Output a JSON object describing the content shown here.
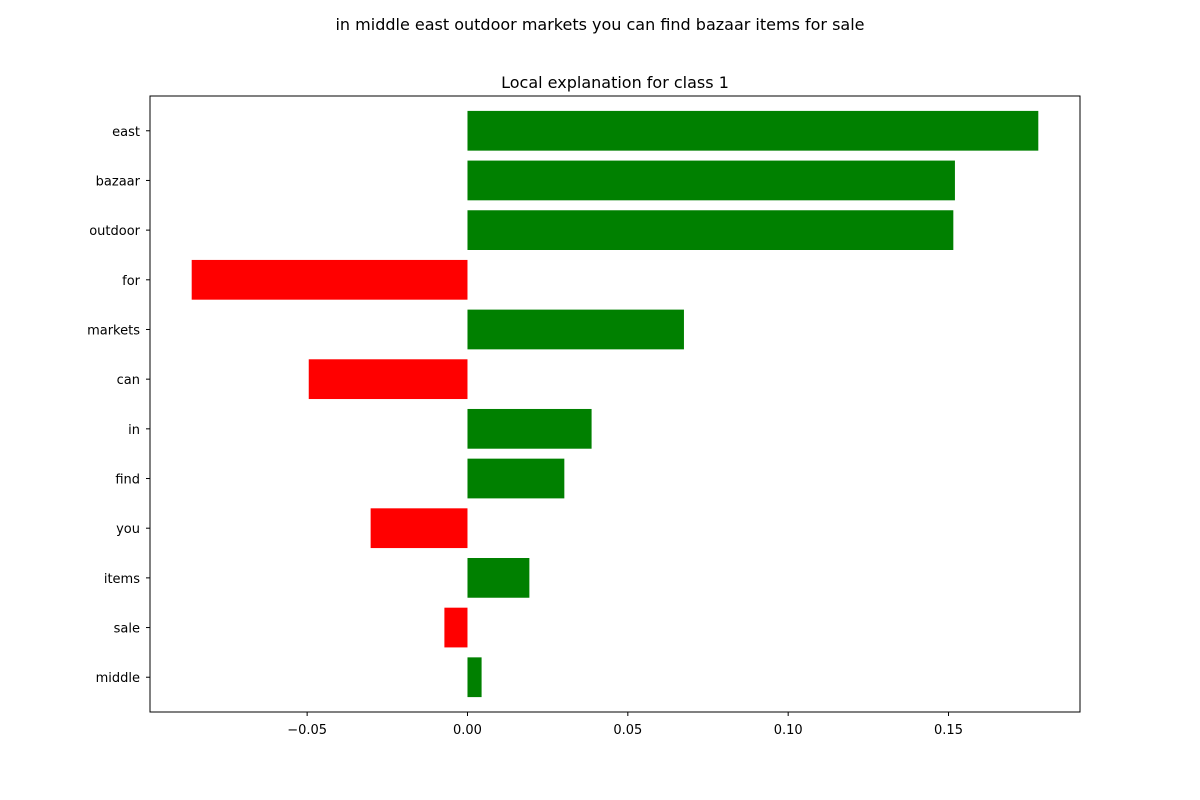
{
  "suptitle": "in middle east outdoor markets you can find bazaar items for sale",
  "chart_data": {
    "type": "bar",
    "orientation": "horizontal",
    "title": "Local explanation for class 1",
    "xlabel": "",
    "ylabel": "",
    "categories": [
      "east",
      "bazaar",
      "outdoor",
      "for",
      "markets",
      "can",
      "in",
      "find",
      "you",
      "items",
      "sale",
      "middle"
    ],
    "values": [
      0.178,
      0.152,
      0.1515,
      -0.086,
      0.0675,
      -0.0495,
      0.0387,
      0.0302,
      -0.0302,
      0.0193,
      -0.0072,
      0.0044
    ],
    "xlim": [
      -0.099,
      0.191
    ],
    "xticks": [
      -0.05,
      0.0,
      0.05,
      0.1,
      0.15
    ],
    "xtick_labels": [
      "−0.05",
      "0.00",
      "0.05",
      "0.10",
      "0.15"
    ],
    "grid": false,
    "colors": {
      "positive": "#008000",
      "negative": "#ff0000"
    }
  }
}
